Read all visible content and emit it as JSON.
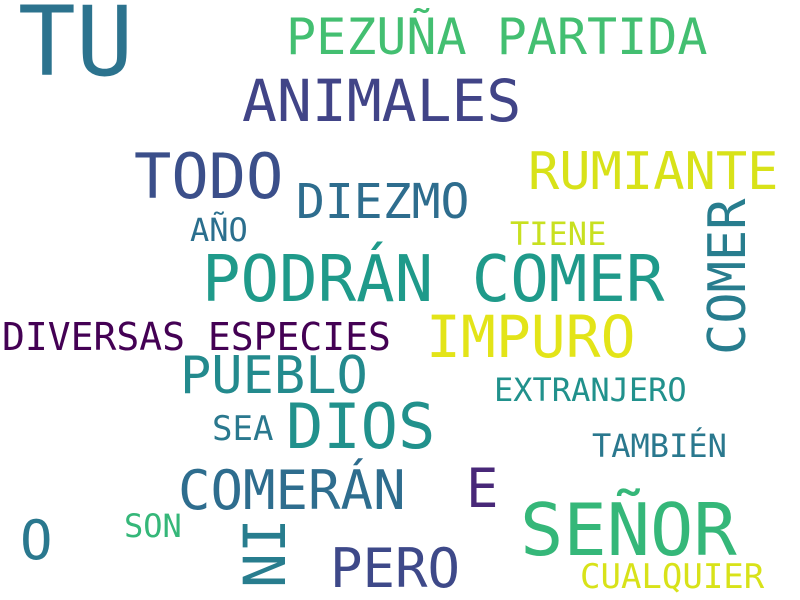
{
  "words": {
    "tu": "TU",
    "pezuna_partida": "PEZUÑA PARTIDA",
    "animales": "ANIMALES",
    "todo": "TODO",
    "rumiante": "RUMIANTE",
    "diezmo": "DIEZMO",
    "ano": "AÑO",
    "tiene": "TIENE",
    "comer_vertical": "COMER",
    "podran_comer": "PODRÁN COMER",
    "diversas_especies": "DIVERSAS ESPECIES",
    "impuro": "IMPURO",
    "pueblo": "PUEBLO",
    "extranjero": "EXTRANJERO",
    "sea": "SEA",
    "dios": "DIOS",
    "tambien": "TAMBIÉN",
    "comeran": "COMERÁN",
    "e": "E",
    "senor": "SEÑOR",
    "o": "O",
    "son": "SON",
    "ni": "NI",
    "pero": "PERO",
    "cualquier": "CUALQUIER"
  },
  "palette": [
    "#2b6f8e",
    "#43bf71",
    "#3b4f8a",
    "#d8e219",
    "#1f9a8a",
    "#440154",
    "#35b779",
    "#482878",
    "#21918c"
  ]
}
